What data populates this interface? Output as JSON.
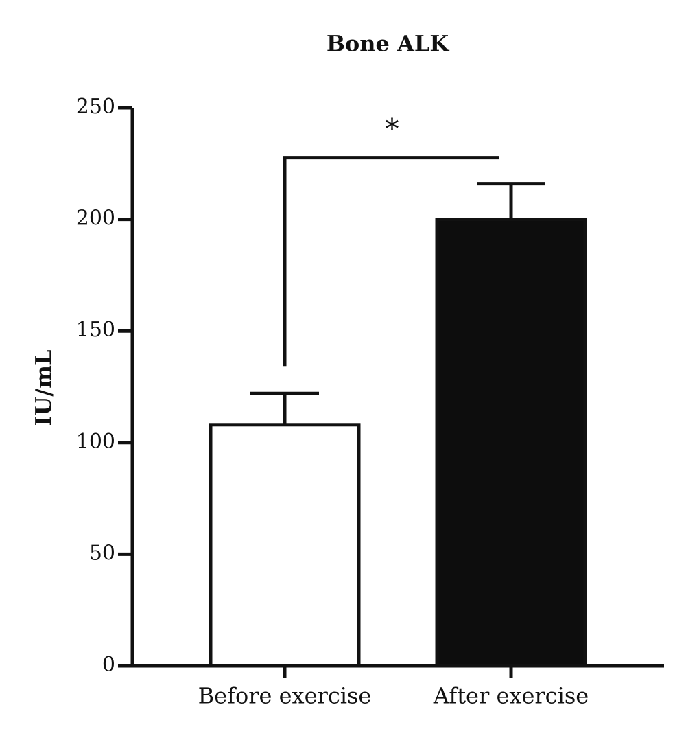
{
  "chart_data": {
    "type": "bar",
    "title": "Bone ALK",
    "y_label": "IU/mL",
    "categories": [
      "Before exercise",
      "After exercise"
    ],
    "values": [
      108,
      200
    ],
    "errors": [
      14,
      16
    ],
    "colors": [
      "#ffffff",
      "#0d0d0d"
    ],
    "ylim": [
      0,
      250
    ],
    "yticks": [
      0,
      50,
      100,
      150,
      200,
      250
    ],
    "annotations": [
      {
        "text": "*"
      }
    ]
  }
}
